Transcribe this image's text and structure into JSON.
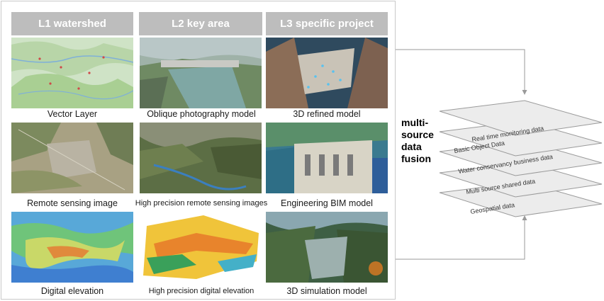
{
  "columns": {
    "l1": "L1 watershed",
    "l2": "L2 key area",
    "l3": "L3 specific project"
  },
  "captions": {
    "r1c1": "Vector Layer",
    "r1c2": "Oblique photography model",
    "r1c3": "3D refined model",
    "r2c1": "Remote sensing image",
    "r2c2": "High precision remote sensing images",
    "r2c3": "Engineering BIM model",
    "r3c1": "Digital elevation",
    "r3c2": "High precision digital elevation",
    "r3c3": "3D simulation model"
  },
  "fusion": {
    "line1": "multi-",
    "line2": "source",
    "line3": "data",
    "line4": "fusion"
  },
  "layers": [
    "Real time monitoring data",
    "Basic Object Data",
    "Water conservancy business data",
    "Multi source shared data",
    "Geospatial data"
  ],
  "colors": {
    "header_bg": "#bdbdbd",
    "layer_fill": "#ececec",
    "layer_stroke": "#9a9a9a",
    "connector": "#9a9a9a"
  }
}
